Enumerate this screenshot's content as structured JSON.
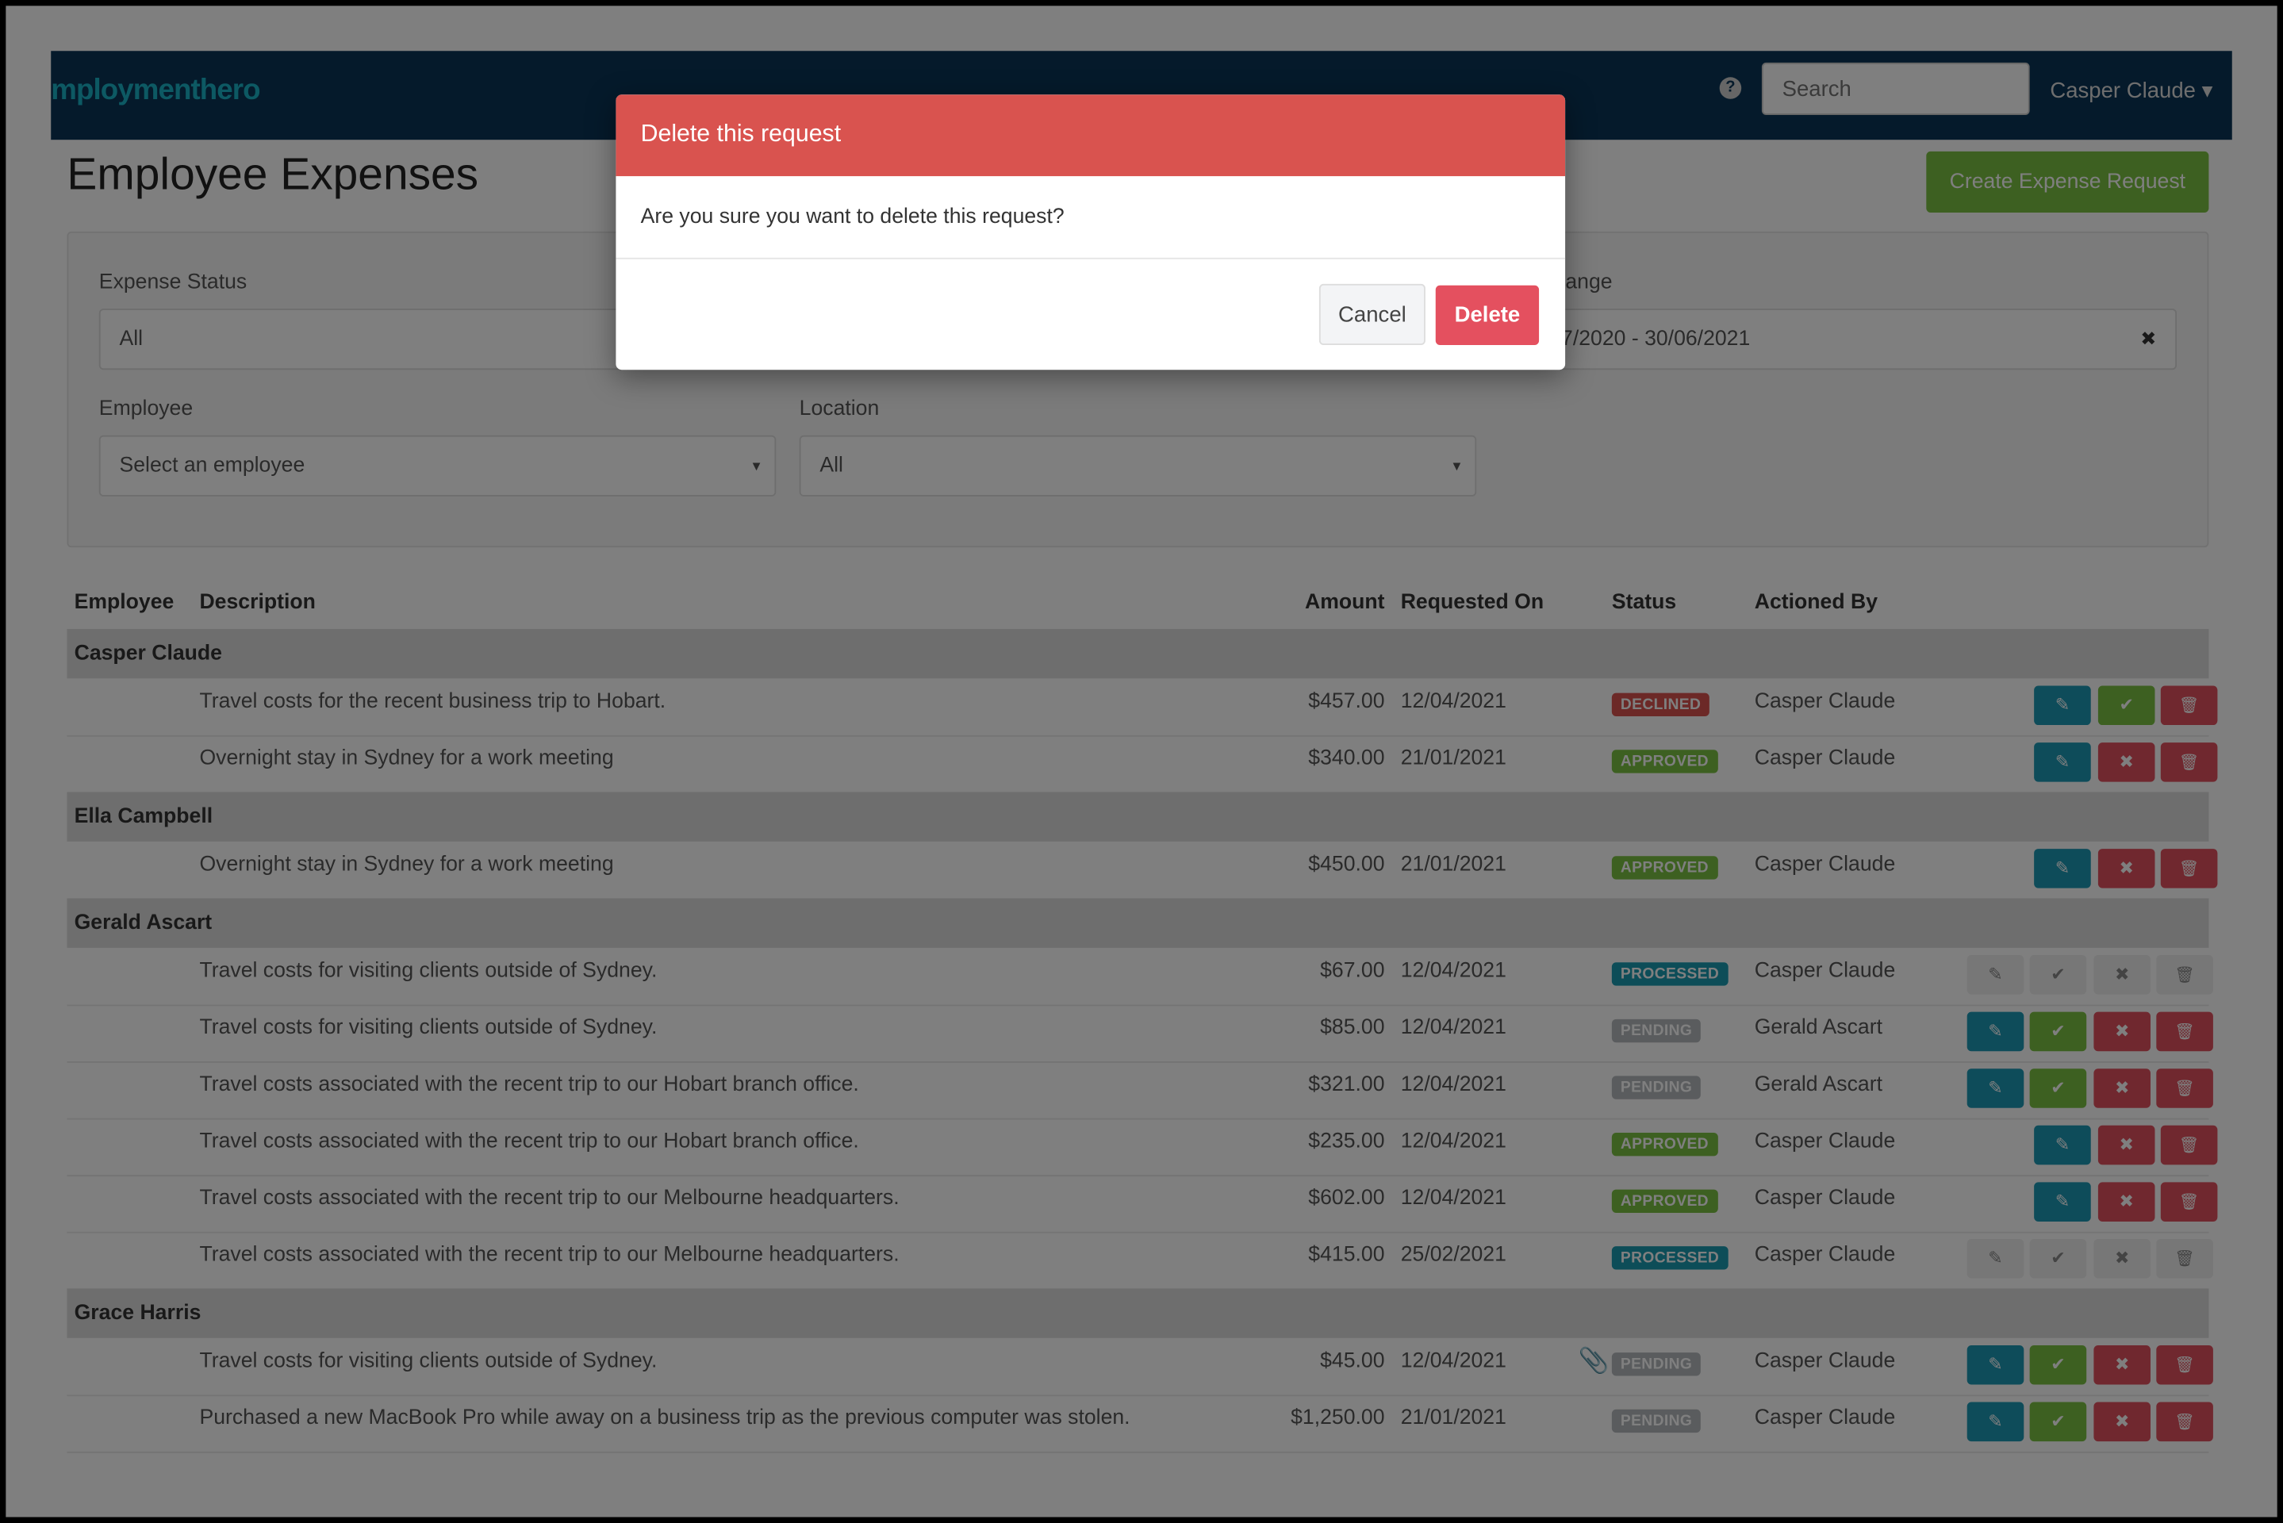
{
  "navbar": {
    "logo": "mploymenthero",
    "help_icon": "?",
    "search_placeholder": "Search",
    "user": "Casper Claude ▾"
  },
  "page": {
    "title": "Employee Expenses",
    "create_button": "Create Expense Request"
  },
  "filters": {
    "expense_status": {
      "label": "Expense Status",
      "value": "All"
    },
    "date_range": {
      "label": "Date Range",
      "value": "01/07/2020 - 30/06/2021",
      "clear": "✖"
    },
    "employee": {
      "label": "Employee",
      "placeholder": "Select an employee"
    },
    "location": {
      "label": "Location",
      "value": "All"
    }
  },
  "table": {
    "headers": {
      "employee": "Employee",
      "description": "Description",
      "amount": "Amount",
      "requested_on": "Requested On",
      "status": "Status",
      "actioned_by": "Actioned By"
    },
    "groups": [
      {
        "employee": "Casper Claude",
        "rows": [
          {
            "description": "Travel costs for the recent business trip to Hobart.",
            "amount": "$457.00",
            "requested_on": "12/04/2021",
            "status": "DECLINED",
            "actioned_by": "Casper Claude",
            "actions": [
              "edit",
              "approve",
              "delete"
            ]
          },
          {
            "description": "Overnight stay in Sydney for a work meeting",
            "amount": "$340.00",
            "requested_on": "21/01/2021",
            "status": "APPROVED",
            "actioned_by": "Casper Claude",
            "actions": [
              "edit",
              "decline",
              "delete"
            ]
          }
        ]
      },
      {
        "employee": "Ella Campbell",
        "rows": [
          {
            "description": "Overnight stay in Sydney for a work meeting",
            "amount": "$450.00",
            "requested_on": "21/01/2021",
            "status": "APPROVED",
            "actioned_by": "Casper Claude",
            "actions": [
              "edit",
              "decline",
              "delete"
            ]
          }
        ]
      },
      {
        "employee": "Gerald Ascart",
        "rows": [
          {
            "description": "Travel costs for visiting clients outside of Sydney.",
            "amount": "$67.00",
            "requested_on": "12/04/2021",
            "status": "PROCESSED",
            "actioned_by": "Casper Claude",
            "actions": [
              "edit",
              "approve",
              "decline",
              "delete"
            ],
            "disabled": true
          },
          {
            "description": "Travel costs for visiting clients outside of Sydney.",
            "amount": "$85.00",
            "requested_on": "12/04/2021",
            "status": "PENDING",
            "actioned_by": "Gerald Ascart",
            "actions": [
              "edit",
              "approve",
              "decline",
              "delete"
            ]
          },
          {
            "description": "Travel costs associated with the recent trip to our Hobart branch office.",
            "amount": "$321.00",
            "requested_on": "12/04/2021",
            "status": "PENDING",
            "actioned_by": "Gerald Ascart",
            "actions": [
              "edit",
              "approve",
              "decline",
              "delete"
            ]
          },
          {
            "description": "Travel costs associated with the recent trip to our Hobart branch office.",
            "amount": "$235.00",
            "requested_on": "12/04/2021",
            "status": "APPROVED",
            "actioned_by": "Casper Claude",
            "actions": [
              "edit",
              "decline",
              "delete"
            ]
          },
          {
            "description": "Travel costs associated with the recent trip to our Melbourne headquarters.",
            "amount": "$602.00",
            "requested_on": "12/04/2021",
            "status": "APPROVED",
            "actioned_by": "Casper Claude",
            "actions": [
              "edit",
              "decline",
              "delete"
            ]
          },
          {
            "description": "Travel costs associated with the recent trip to our Melbourne headquarters.",
            "amount": "$415.00",
            "requested_on": "25/02/2021",
            "status": "PROCESSED",
            "actioned_by": "Casper Claude",
            "actions": [
              "edit",
              "approve",
              "decline",
              "delete"
            ],
            "disabled": true
          }
        ]
      },
      {
        "employee": "Grace Harris",
        "rows": [
          {
            "description": "Travel costs for visiting clients outside of Sydney.",
            "amount": "$45.00",
            "requested_on": "12/04/2021",
            "status": "PENDING",
            "actioned_by": "Casper Claude",
            "attachment": true,
            "actions": [
              "edit",
              "approve",
              "decline",
              "delete"
            ]
          },
          {
            "description": "Purchased a new MacBook Pro while away on a business trip as the previous computer was stolen.",
            "amount": "$1,250.00",
            "requested_on": "21/01/2021",
            "status": "PENDING",
            "actioned_by": "Casper Claude",
            "actions": [
              "edit",
              "approve",
              "decline",
              "delete"
            ]
          }
        ]
      }
    ]
  },
  "colors": {
    "navbar": "#0a3556",
    "declined": "#d9534f",
    "approved": "#7ac143",
    "processed": "#1a9bb0",
    "pending": "#b5b8bc",
    "edit": "#1c98b5",
    "approve": "#7ac143",
    "decline": "#e0505e",
    "delete": "#e0505e",
    "disabled": "#eeeeee"
  },
  "modal": {
    "title": "Delete this request",
    "message": "Are you sure you want to delete this request?",
    "cancel": "Cancel",
    "delete": "Delete"
  }
}
